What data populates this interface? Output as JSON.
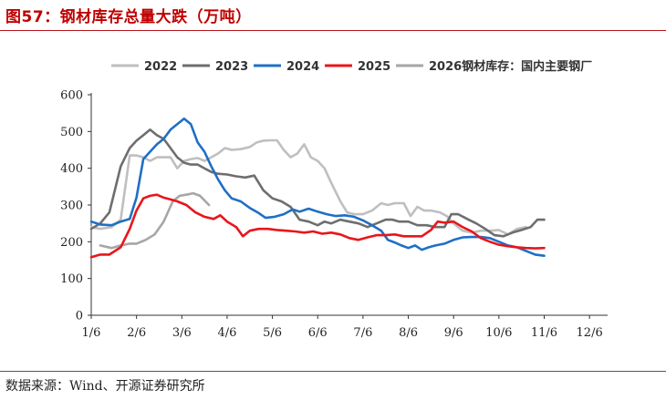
{
  "header": {
    "title": "图57：钢材库存总量大跌（万吨）"
  },
  "footer": {
    "source": "数据来源：Wind、开源证券研究所"
  },
  "chart_data": {
    "type": "line",
    "title": "",
    "xlabel": "",
    "ylabel": "",
    "ylim": [
      0,
      600
    ],
    "yticks": [
      0,
      100,
      200,
      300,
      400,
      500,
      600
    ],
    "xlim": [
      0,
      11.4
    ],
    "xticks": [
      {
        "label": "1/6",
        "x": 0
      },
      {
        "label": "2/6",
        "x": 1
      },
      {
        "label": "3/6",
        "x": 2
      },
      {
        "label": "4/6",
        "x": 3
      },
      {
        "label": "5/6",
        "x": 4
      },
      {
        "label": "6/6",
        "x": 5
      },
      {
        "label": "7/6",
        "x": 6
      },
      {
        "label": "8/6",
        "x": 7
      },
      {
        "label": "9/6",
        "x": 8
      },
      {
        "label": "10/6",
        "x": 9
      },
      {
        "label": "11/6",
        "x": 10
      },
      {
        "label": "12/6",
        "x": 11
      }
    ],
    "grid": false,
    "legend_position": "top",
    "series": [
      {
        "name": "2022",
        "color": "#bfbfbf",
        "points": [
          [
            0,
            240
          ],
          [
            0.2,
            235
          ],
          [
            0.45,
            240
          ],
          [
            0.65,
            260
          ],
          [
            0.85,
            435
          ],
          [
            1,
            435
          ],
          [
            1.15,
            430
          ],
          [
            1.3,
            420
          ],
          [
            1.45,
            430
          ],
          [
            1.6,
            430
          ],
          [
            1.75,
            430
          ],
          [
            1.9,
            400
          ],
          [
            2.05,
            420
          ],
          [
            2.2,
            425
          ],
          [
            2.35,
            428
          ],
          [
            2.5,
            420
          ],
          [
            2.65,
            430
          ],
          [
            2.8,
            440
          ],
          [
            2.95,
            455
          ],
          [
            3.1,
            450
          ],
          [
            3.3,
            452
          ],
          [
            3.5,
            458
          ],
          [
            3.65,
            470
          ],
          [
            3.8,
            475
          ],
          [
            3.95,
            476
          ],
          [
            4.1,
            476
          ],
          [
            4.25,
            450
          ],
          [
            4.4,
            430
          ],
          [
            4.55,
            440
          ],
          [
            4.7,
            465
          ],
          [
            4.85,
            430
          ],
          [
            5.0,
            420
          ],
          [
            5.15,
            400
          ],
          [
            5.3,
            360
          ],
          [
            5.5,
            310
          ],
          [
            5.65,
            280
          ],
          [
            5.8,
            275
          ],
          [
            6.0,
            275
          ],
          [
            6.2,
            285
          ],
          [
            6.4,
            305
          ],
          [
            6.55,
            300
          ],
          [
            6.7,
            305
          ],
          [
            6.9,
            305
          ],
          [
            7.05,
            270
          ],
          [
            7.2,
            295
          ],
          [
            7.35,
            285
          ],
          [
            7.5,
            285
          ],
          [
            7.7,
            280
          ],
          [
            7.85,
            270
          ],
          [
            8.0,
            250
          ],
          [
            8.2,
            230
          ],
          [
            8.4,
            225
          ],
          [
            8.6,
            230
          ],
          [
            8.8,
            230
          ],
          [
            9.0,
            232
          ],
          [
            9.2,
            220
          ],
          [
            9.4,
            235
          ],
          [
            9.6,
            240
          ]
        ]
      },
      {
        "name": "2023",
        "color": "#6e6e6e",
        "points": [
          [
            0,
            235
          ],
          [
            0.2,
            250
          ],
          [
            0.4,
            280
          ],
          [
            0.65,
            405
          ],
          [
            0.85,
            455
          ],
          [
            1.0,
            475
          ],
          [
            1.15,
            490
          ],
          [
            1.3,
            505
          ],
          [
            1.45,
            490
          ],
          [
            1.6,
            480
          ],
          [
            1.75,
            455
          ],
          [
            1.9,
            430
          ],
          [
            2.05,
            415
          ],
          [
            2.2,
            410
          ],
          [
            2.35,
            410
          ],
          [
            2.5,
            400
          ],
          [
            2.65,
            390
          ],
          [
            2.8,
            385
          ],
          [
            3.0,
            383
          ],
          [
            3.2,
            378
          ],
          [
            3.4,
            375
          ],
          [
            3.6,
            380
          ],
          [
            3.8,
            340
          ],
          [
            4.0,
            318
          ],
          [
            4.2,
            310
          ],
          [
            4.4,
            295
          ],
          [
            4.6,
            260
          ],
          [
            4.8,
            255
          ],
          [
            5.0,
            245
          ],
          [
            5.15,
            255
          ],
          [
            5.3,
            250
          ],
          [
            5.5,
            260
          ],
          [
            5.7,
            255
          ],
          [
            5.9,
            250
          ],
          [
            6.1,
            240
          ],
          [
            6.3,
            250
          ],
          [
            6.5,
            260
          ],
          [
            6.65,
            260
          ],
          [
            6.8,
            255
          ],
          [
            7.0,
            255
          ],
          [
            7.2,
            245
          ],
          [
            7.4,
            245
          ],
          [
            7.6,
            240
          ],
          [
            7.8,
            240
          ],
          [
            7.95,
            275
          ],
          [
            8.1,
            275
          ],
          [
            8.3,
            262
          ],
          [
            8.5,
            250
          ],
          [
            8.7,
            235
          ],
          [
            8.9,
            218
          ],
          [
            9.1,
            215
          ],
          [
            9.3,
            225
          ],
          [
            9.5,
            232
          ],
          [
            9.7,
            240
          ],
          [
            9.85,
            260
          ],
          [
            10.0,
            260
          ]
        ]
      },
      {
        "name": "2024",
        "color": "#1f6fc5",
        "points": [
          [
            0,
            255
          ],
          [
            0.2,
            247
          ],
          [
            0.45,
            245
          ],
          [
            0.65,
            255
          ],
          [
            0.85,
            262
          ],
          [
            1.0,
            320
          ],
          [
            1.15,
            425
          ],
          [
            1.3,
            445
          ],
          [
            1.45,
            465
          ],
          [
            1.6,
            480
          ],
          [
            1.75,
            505
          ],
          [
            1.9,
            520
          ],
          [
            2.05,
            535
          ],
          [
            2.2,
            520
          ],
          [
            2.35,
            470
          ],
          [
            2.5,
            445
          ],
          [
            2.65,
            405
          ],
          [
            2.8,
            370
          ],
          [
            2.95,
            340
          ],
          [
            3.1,
            318
          ],
          [
            3.3,
            310
          ],
          [
            3.5,
            292
          ],
          [
            3.7,
            278
          ],
          [
            3.85,
            265
          ],
          [
            4.05,
            268
          ],
          [
            4.25,
            275
          ],
          [
            4.45,
            288
          ],
          [
            4.6,
            282
          ],
          [
            4.8,
            290
          ],
          [
            5.0,
            282
          ],
          [
            5.2,
            275
          ],
          [
            5.4,
            270
          ],
          [
            5.6,
            272
          ],
          [
            5.8,
            268
          ],
          [
            6.0,
            258
          ],
          [
            6.2,
            245
          ],
          [
            6.4,
            230
          ],
          [
            6.55,
            205
          ],
          [
            6.7,
            198
          ],
          [
            6.85,
            190
          ],
          [
            7.0,
            183
          ],
          [
            7.15,
            190
          ],
          [
            7.3,
            178
          ],
          [
            7.45,
            185
          ],
          [
            7.6,
            190
          ],
          [
            7.8,
            195
          ],
          [
            8.0,
            205
          ],
          [
            8.2,
            212
          ],
          [
            8.4,
            213
          ],
          [
            8.6,
            213
          ],
          [
            8.8,
            210
          ],
          [
            9.0,
            200
          ],
          [
            9.2,
            190
          ],
          [
            9.4,
            185
          ],
          [
            9.6,
            175
          ],
          [
            9.8,
            165
          ],
          [
            10.0,
            162
          ]
        ]
      },
      {
        "name": "2025",
        "color": "#e8161b",
        "points": [
          [
            0,
            158
          ],
          [
            0.2,
            165
          ],
          [
            0.4,
            165
          ],
          [
            0.65,
            185
          ],
          [
            0.85,
            235
          ],
          [
            1.0,
            285
          ],
          [
            1.15,
            318
          ],
          [
            1.3,
            325
          ],
          [
            1.45,
            328
          ],
          [
            1.6,
            320
          ],
          [
            1.75,
            315
          ],
          [
            1.9,
            310
          ],
          [
            2.1,
            300
          ],
          [
            2.3,
            280
          ],
          [
            2.5,
            268
          ],
          [
            2.7,
            262
          ],
          [
            2.85,
            272
          ],
          [
            3.0,
            255
          ],
          [
            3.2,
            240
          ],
          [
            3.35,
            215
          ],
          [
            3.5,
            230
          ],
          [
            3.7,
            235
          ],
          [
            3.9,
            235
          ],
          [
            4.1,
            232
          ],
          [
            4.3,
            230
          ],
          [
            4.5,
            228
          ],
          [
            4.7,
            225
          ],
          [
            4.9,
            228
          ],
          [
            5.1,
            222
          ],
          [
            5.3,
            225
          ],
          [
            5.5,
            220
          ],
          [
            5.7,
            210
          ],
          [
            5.9,
            205
          ],
          [
            6.1,
            212
          ],
          [
            6.3,
            218
          ],
          [
            6.5,
            218
          ],
          [
            6.7,
            220
          ],
          [
            6.9,
            215
          ],
          [
            7.1,
            215
          ],
          [
            7.3,
            215
          ],
          [
            7.5,
            232
          ],
          [
            7.65,
            255
          ],
          [
            7.8,
            252
          ],
          [
            8.0,
            255
          ],
          [
            8.2,
            240
          ],
          [
            8.4,
            228
          ],
          [
            8.6,
            210
          ],
          [
            8.8,
            200
          ],
          [
            9.0,
            192
          ],
          [
            9.2,
            188
          ],
          [
            9.4,
            185
          ],
          [
            9.6,
            183
          ],
          [
            9.8,
            182
          ],
          [
            10.0,
            183
          ]
        ]
      },
      {
        "name": "2026钢材库存：国内主要钢厂",
        "color": "#a6a6a6",
        "points": [
          [
            0.2,
            190
          ],
          [
            0.45,
            183
          ],
          [
            0.65,
            190
          ],
          [
            0.85,
            195
          ],
          [
            1.0,
            195
          ],
          [
            1.2,
            205
          ],
          [
            1.4,
            220
          ],
          [
            1.6,
            255
          ],
          [
            1.8,
            310
          ],
          [
            1.95,
            325
          ],
          [
            2.1,
            328
          ],
          [
            2.25,
            332
          ],
          [
            2.4,
            325
          ],
          [
            2.6,
            300
          ]
        ]
      }
    ]
  }
}
